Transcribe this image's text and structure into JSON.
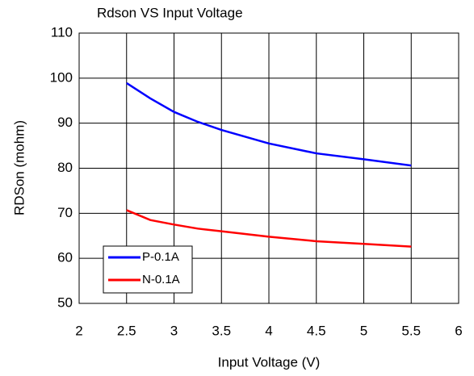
{
  "chart_data": {
    "type": "line",
    "title": "Rdson VS Input Voltage",
    "x_label": "Input Voltage (V)",
    "y_label": "RDSon (mohm)",
    "x": [
      2.5,
      2.75,
      3,
      3.25,
      3.5,
      4,
      4.5,
      5,
      5.5
    ],
    "series": [
      {
        "name": "P-0.1A",
        "color": "#0000ff",
        "values": [
          98.9,
          95.5,
          92.5,
          90.3,
          88.5,
          85.5,
          83.3,
          82,
          80.6
        ]
      },
      {
        "name": "N-0.1A",
        "color": "#ff0000",
        "values": [
          70.7,
          68.5,
          67.5,
          66.6,
          66,
          64.8,
          63.8,
          63.2,
          62.6
        ]
      }
    ],
    "xlim": [
      2,
      6
    ],
    "xticks": [
      2,
      2.5,
      3,
      3.5,
      4,
      4.5,
      5,
      5.5,
      6
    ],
    "ylim": [
      50,
      110
    ],
    "yticks": [
      50,
      60,
      70,
      80,
      90,
      100,
      110
    ],
    "grid": true,
    "legend": "lower left"
  }
}
